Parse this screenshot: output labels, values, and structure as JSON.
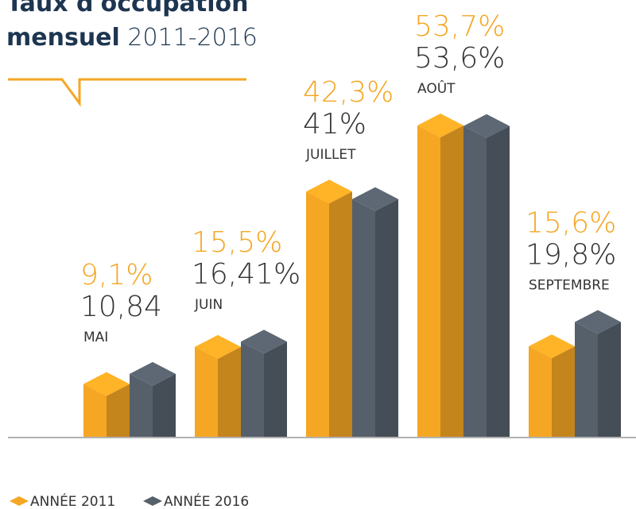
{
  "chart_data": {
    "type": "bar3d",
    "title": "Taux d'occupation",
    "subtitle_bold": "mensuel",
    "subtitle": "2011-2016",
    "categories": [
      "MAI",
      "JUIN",
      "JUILLET",
      "AOÛT",
      "SEPTEMBRE"
    ],
    "series": [
      {
        "name": "ANNÉE 2011",
        "color": "#f5a623",
        "values": [
          9.1,
          15.5,
          42.3,
          53.7,
          15.6
        ],
        "value_labels": [
          "9,1%",
          "15,5%",
          "42,3%",
          "53,7%",
          "15,6%"
        ]
      },
      {
        "name": "ANNÉE 2016",
        "color": "#56606b",
        "values": [
          10.84,
          16.41,
          41,
          53.6,
          19.8
        ],
        "value_labels": [
          "10,84",
          "16,41%",
          "41%",
          "53,6%",
          "19,8%"
        ]
      }
    ],
    "ylim": [
      0,
      60
    ]
  }
}
